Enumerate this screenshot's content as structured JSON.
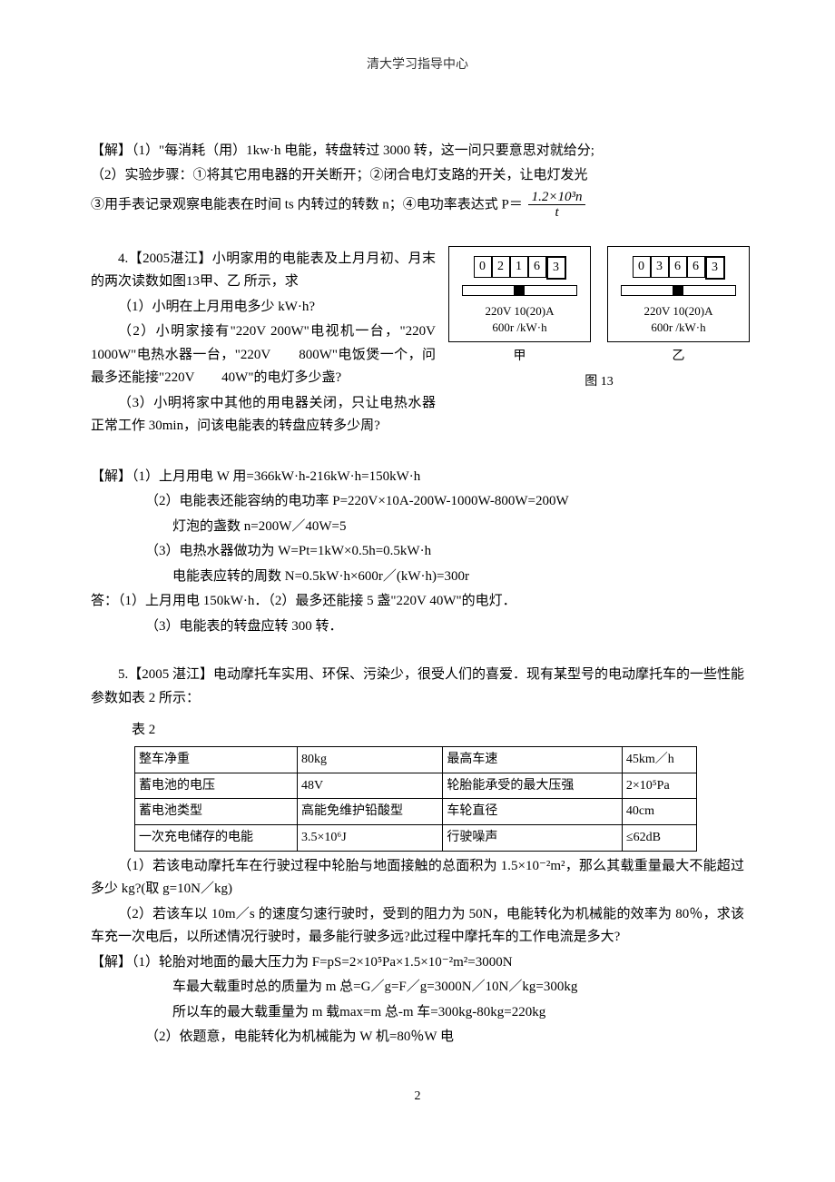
{
  "header": "清大学习指导中心",
  "pagenum": "2",
  "sol3": {
    "line1": "【解】（1）\"每消耗（用）1kw·h 电能，转盘转过 3000 转，这一问只要意思对就给分;",
    "line2": "（2）实验步骤：①将其它用电器的开关断开；②闭合电灯支路的开关，让电灯发光",
    "line3_a": "③用手表记录观察电能表在时间 ts 内转过的转数 n；④电功率表达式 P＝",
    "frac_num": "1.2×10³n",
    "frac_den": "t"
  },
  "q4": {
    "title": "4.【2005湛江】小明家用的电能表及上月月初、月末的两次读数如图13甲、乙  所示，求",
    "l1": "（1）小明在上月用电多少 kW·h?",
    "l2": "（2）小明家接有\"220V 200W\"电视机一台，\"220V 1000W\"电热水器一台，\"220V　　800W\"电饭煲一个，问最多还能接\"220V　　40W\"的电灯多少盏?",
    "l3": "（3）小明将家中其他的用电器关闭，只让电热水器正常工作 30min，问该电能表的转盘应转多少周?",
    "meterA_digits": [
      "0",
      "2",
      "1",
      "6",
      "3"
    ],
    "meterB_digits": [
      "0",
      "3",
      "6",
      "6",
      "3"
    ],
    "spec1": "220V  10(20)A",
    "spec2": "600r /kW·h",
    "labelA": "甲",
    "labelB": "乙",
    "caption": "图 13"
  },
  "sol4": {
    "l1": "【解】（1）上月用电 W 用=366kW·h-216kW·h=150kW·h",
    "l2": "（2）电能表还能容纳的电功率 P=220V×10A-200W-1000W-800W=200W",
    "l3": "灯泡的盏数 n=200W／40W=5",
    "l4": "（3）电热水器做功为 W=Pt=1kW×0.5h=0.5kW·h",
    "l5": "电能表应转的周数 N=0.5kW·h×600r／(kW·h)=300r",
    "ans1": "答：（1）上月用电 150kW·h．（2）最多还能接 5 盏\"220V 40W\"的电灯．",
    "ans2": "（3）电能表的转盘应转 300 转．"
  },
  "q5": {
    "title": "5.【2005 湛江】电动摩托车实用、环保、污染少，很受人们的喜爱．现有某型号的电动摩托车的一些性能参数如表 2 所示：",
    "tlabel": "表 2",
    "table": {
      "r1c1": "整车净重",
      "r1c2": "80kg",
      "r1c3": "最高车速",
      "r1c4": "45km／h",
      "r2c1": "蓄电池的电压",
      "r2c2": "48V",
      "r2c3": "轮胎能承受的最大压强",
      "r2c4": "2×10⁵Pa",
      "r3c1": "蓄电池类型",
      "r3c2": "高能免维护铅酸型",
      "r3c3": "车轮直径",
      "r3c4": "40cm",
      "r4c1": "一次充电储存的电能",
      "r4c2": "3.5×10⁶J",
      "r4c3": "行驶噪声",
      "r4c4": "≤62dB"
    },
    "l1": "（1）若该电动摩托车在行驶过程中轮胎与地面接触的总面积为 1.5×10⁻²m²，那么其载重量最大不能超过多少 kg?(取 g=10N／kg)",
    "l2": "（2）若该车以 10m／s 的速度匀速行驶时，受到的阻力为 50N，电能转化为机械能的效率为 80％，求该车充一次电后，以所述情况行驶时，最多能行驶多远?此过程中摩托车的工作电流是多大?"
  },
  "sol5": {
    "l1": "【解】（1）轮胎对地面的最大压力为 F=pS=2×10⁵Pa×1.5×10⁻²m²=3000N",
    "l2": "车最大载重时总的质量为 m 总=G／g=F／g=3000N／10N／kg=300kg",
    "l3": "所以车的最大载重量为 m 载max=m 总-m 车=300kg-80kg=220kg",
    "l4": "（2）依题意，电能转化为机械能为 W 机=80％W 电"
  }
}
